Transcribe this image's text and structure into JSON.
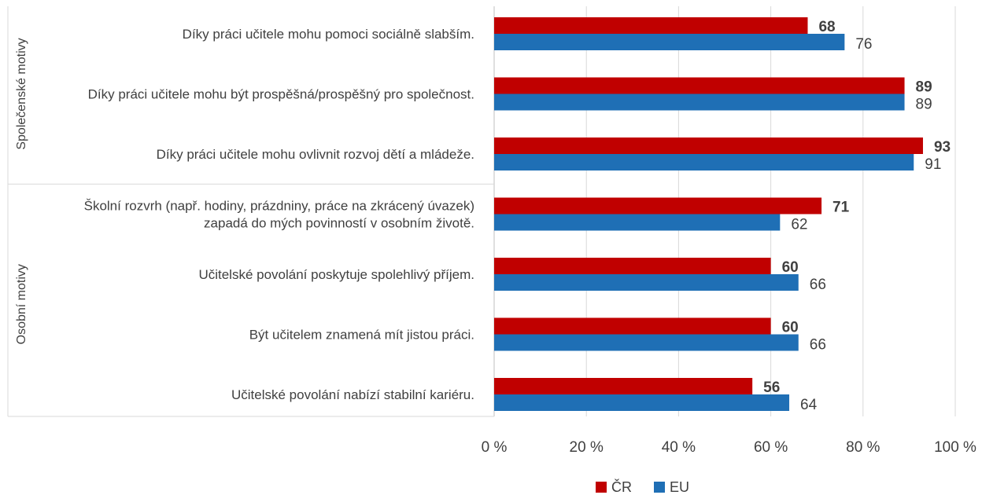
{
  "chart_data": {
    "type": "bar",
    "orientation": "horizontal",
    "categories": [
      [
        "Díky práci učitele mohu pomoci sociálně slabším."
      ],
      [
        "Díky práci učitele mohu být prospěšná/prospěšný pro společnost."
      ],
      [
        "Díky práci učitele mohu ovlivnit rozvoj dětí a mládeže."
      ],
      [
        "Školní rozvrh (např. hodiny, prázdniny, práce na zkrácený úvazek)",
        "zapadá do mých povinností v osobním životě."
      ],
      [
        "Učitelské povolání poskytuje spolehlivý příjem."
      ],
      [
        "Být učitelem znamená mít jistou práci."
      ],
      [
        "Učitelské povolání nabízí stabilní kariéru."
      ]
    ],
    "groups": [
      {
        "label": "Společenské motivy",
        "first": 0,
        "last": 2
      },
      {
        "label": "Osobní motivy",
        "first": 3,
        "last": 6
      }
    ],
    "series": [
      {
        "name": "ČR",
        "color": "#C00000",
        "bold_labels": true,
        "values": [
          68,
          89,
          93,
          71,
          60,
          60,
          56
        ]
      },
      {
        "name": "EU",
        "color": "#1F6FB5",
        "bold_labels": false,
        "values": [
          76,
          89,
          91,
          62,
          66,
          66,
          64
        ]
      }
    ],
    "x_ticks": [
      "0 %",
      "20 %",
      "40 %",
      "60 %",
      "80 %",
      "100 %"
    ],
    "xlim": [
      0,
      100
    ],
    "grid": true,
    "legend_position": "bottom"
  }
}
